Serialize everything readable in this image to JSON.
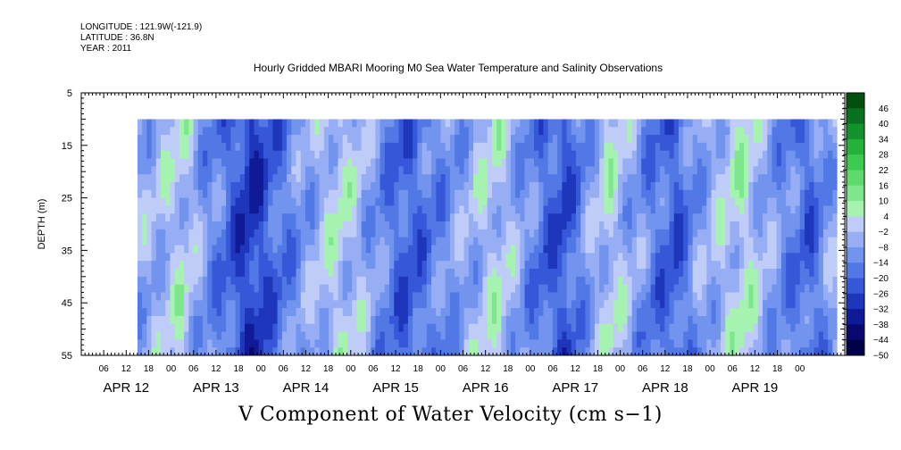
{
  "header": {
    "longitude": "LONGITUDE : 121.9W(-121.9)",
    "latitude": "LATITUDE : 36.8N",
    "year": "YEAR : 2011",
    "title": "Hourly Gridded MBARI Mooring M0 Sea Water Temperature and Salinity Observations"
  },
  "chart_data": {
    "type": "heatmap",
    "title": "Hourly Gridded MBARI Mooring M0 Sea Water Temperature and Salinity Observations",
    "variable_label": "V Component of Water Velocity (cm s−1)",
    "ylabel": "DEPTH (m)",
    "ylim": [
      55,
      5
    ],
    "y_ticks": [
      5,
      15,
      25,
      35,
      45,
      55
    ],
    "data_depth_range": [
      10,
      55
    ],
    "hour_tick_labels": [
      "06",
      "12",
      "18",
      "00",
      "06",
      "12",
      "18",
      "00",
      "06",
      "12",
      "18",
      "00",
      "06",
      "12",
      "18",
      "00",
      "06",
      "12",
      "18",
      "00",
      "06",
      "12",
      "18",
      "00",
      "06",
      "12",
      "18",
      "00",
      "06",
      "12",
      "18",
      "00"
    ],
    "date_labels": [
      "APR 12",
      "APR 13",
      "APR 14",
      "APR 15",
      "APR 16",
      "APR 17",
      "APR 18",
      "APR 19"
    ],
    "x_range_hours_from_apr12": [
      -12,
      192
    ],
    "data_time_range_hours_from_apr12": [
      3,
      190
    ],
    "colorbar": {
      "levels": [
        -50,
        -44,
        -38,
        -32,
        -26,
        -20,
        -14,
        -8,
        -2,
        4,
        10,
        16,
        22,
        28,
        34,
        40,
        46
      ],
      "labels": [
        "-50",
        "-44",
        "-38",
        "-32",
        "-26",
        "-20",
        "-14",
        "-8",
        "-2",
        "4",
        "10",
        "16",
        "22",
        "28",
        "34",
        "40",
        "46"
      ],
      "colors": [
        "#00004a",
        "#08086e",
        "#101a96",
        "#1e36bc",
        "#3658d8",
        "#5278e6",
        "#7294ee",
        "#98aef4",
        "#c0ccf8",
        "#a6f2b0",
        "#7ee68c",
        "#5ed96c",
        "#3cca50",
        "#24b23c",
        "#12922c",
        "#08701e",
        "#025010"
      ]
    },
    "column_profile_hours": [
      3,
      9,
      15,
      21,
      27,
      33,
      39,
      45,
      51,
      57,
      63,
      69,
      75,
      81,
      87,
      93,
      99,
      105,
      111,
      117,
      123,
      129,
      135,
      141,
      147,
      153,
      159,
      165,
      171,
      177,
      183,
      189
    ],
    "column_mean_values": [
      -6,
      -4,
      2,
      -10,
      -18,
      -30,
      -20,
      -12,
      -4,
      2,
      -4,
      -14,
      -22,
      -16,
      -10,
      -4,
      2,
      -8,
      -18,
      -24,
      -10,
      2,
      -6,
      -16,
      -22,
      -8,
      -2,
      4,
      -6,
      -14,
      -20,
      -6
    ]
  }
}
